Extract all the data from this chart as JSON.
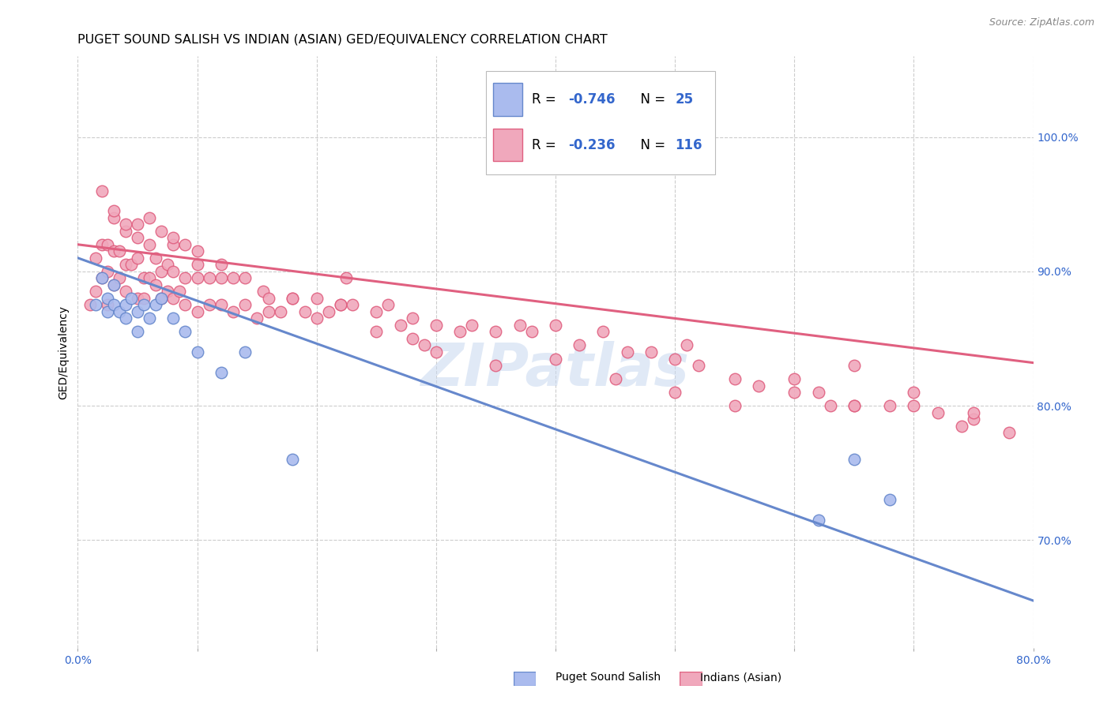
{
  "title": "PUGET SOUND SALISH VS INDIAN (ASIAN) GED/EQUIVALENCY CORRELATION CHART",
  "source": "Source: ZipAtlas.com",
  "ylabel": "GED/Equivalency",
  "blue_color": "#6688cc",
  "blue_fill": "#aabbee",
  "pink_color": "#e06080",
  "pink_fill": "#f0a8bc",
  "watermark": "ZIPatlas",
  "legend_r1": "-0.746",
  "legend_n1": "25",
  "legend_r2": "-0.236",
  "legend_n2": "116",
  "xlim": [
    0.0,
    0.8
  ],
  "ylim": [
    0.62,
    1.06
  ],
  "yticks_right": [
    0.7,
    0.8,
    0.9,
    1.0
  ],
  "ytick_right_labels": [
    "70.0%",
    "80.0%",
    "90.0%",
    "100.0%"
  ],
  "xticks": [
    0.0,
    0.1,
    0.2,
    0.3,
    0.4,
    0.5,
    0.6,
    0.7,
    0.8
  ],
  "blue_scatter_x": [
    0.015,
    0.02,
    0.025,
    0.025,
    0.03,
    0.03,
    0.035,
    0.04,
    0.04,
    0.045,
    0.05,
    0.05,
    0.055,
    0.06,
    0.065,
    0.07,
    0.08,
    0.09,
    0.1,
    0.12,
    0.14,
    0.18,
    0.62,
    0.65,
    0.68
  ],
  "blue_scatter_y": [
    0.875,
    0.895,
    0.88,
    0.87,
    0.89,
    0.875,
    0.87,
    0.875,
    0.865,
    0.88,
    0.87,
    0.855,
    0.875,
    0.865,
    0.875,
    0.88,
    0.865,
    0.855,
    0.84,
    0.825,
    0.84,
    0.76,
    0.715,
    0.76,
    0.73
  ],
  "pink_scatter_x": [
    0.01,
    0.015,
    0.015,
    0.02,
    0.02,
    0.025,
    0.025,
    0.025,
    0.03,
    0.03,
    0.03,
    0.035,
    0.035,
    0.04,
    0.04,
    0.04,
    0.045,
    0.05,
    0.05,
    0.05,
    0.055,
    0.055,
    0.06,
    0.06,
    0.065,
    0.065,
    0.07,
    0.07,
    0.075,
    0.075,
    0.08,
    0.08,
    0.08,
    0.085,
    0.09,
    0.09,
    0.1,
    0.1,
    0.1,
    0.11,
    0.11,
    0.12,
    0.12,
    0.13,
    0.13,
    0.14,
    0.15,
    0.155,
    0.16,
    0.17,
    0.18,
    0.19,
    0.2,
    0.21,
    0.22,
    0.225,
    0.23,
    0.25,
    0.26,
    0.27,
    0.28,
    0.29,
    0.3,
    0.32,
    0.33,
    0.35,
    0.37,
    0.38,
    0.4,
    0.42,
    0.44,
    0.46,
    0.48,
    0.5,
    0.51,
    0.52,
    0.55,
    0.57,
    0.6,
    0.62,
    0.63,
    0.65,
    0.65,
    0.68,
    0.7,
    0.72,
    0.74,
    0.75,
    0.02,
    0.03,
    0.04,
    0.05,
    0.06,
    0.07,
    0.08,
    0.09,
    0.1,
    0.12,
    0.14,
    0.16,
    0.18,
    0.2,
    0.22,
    0.25,
    0.28,
    0.3,
    0.35,
    0.4,
    0.45,
    0.5,
    0.55,
    0.6,
    0.65,
    0.7,
    0.75,
    0.78
  ],
  "pink_scatter_y": [
    0.875,
    0.885,
    0.91,
    0.895,
    0.92,
    0.875,
    0.9,
    0.92,
    0.89,
    0.915,
    0.94,
    0.895,
    0.915,
    0.885,
    0.905,
    0.93,
    0.905,
    0.88,
    0.91,
    0.935,
    0.895,
    0.88,
    0.895,
    0.92,
    0.89,
    0.91,
    0.88,
    0.9,
    0.885,
    0.905,
    0.88,
    0.9,
    0.92,
    0.885,
    0.875,
    0.895,
    0.87,
    0.895,
    0.915,
    0.875,
    0.895,
    0.875,
    0.895,
    0.87,
    0.895,
    0.875,
    0.865,
    0.885,
    0.87,
    0.87,
    0.88,
    0.87,
    0.88,
    0.87,
    0.875,
    0.895,
    0.875,
    0.87,
    0.875,
    0.86,
    0.865,
    0.845,
    0.86,
    0.855,
    0.86,
    0.855,
    0.86,
    0.855,
    0.86,
    0.845,
    0.855,
    0.84,
    0.84,
    0.835,
    0.845,
    0.83,
    0.82,
    0.815,
    0.82,
    0.81,
    0.8,
    0.8,
    0.83,
    0.8,
    0.81,
    0.795,
    0.785,
    0.79,
    0.96,
    0.945,
    0.935,
    0.925,
    0.94,
    0.93,
    0.925,
    0.92,
    0.905,
    0.905,
    0.895,
    0.88,
    0.88,
    0.865,
    0.875,
    0.855,
    0.85,
    0.84,
    0.83,
    0.835,
    0.82,
    0.81,
    0.8,
    0.81,
    0.8,
    0.8,
    0.795,
    0.78
  ],
  "blue_line_x": [
    0.0,
    0.8
  ],
  "blue_line_y": [
    0.91,
    0.655
  ],
  "pink_line_x": [
    0.0,
    0.8
  ],
  "pink_line_y": [
    0.92,
    0.832
  ],
  "grid_color": "#cccccc",
  "title_fontsize": 11.5,
  "axis_label_fontsize": 10,
  "tick_fontsize": 10,
  "legend_fontsize": 12
}
